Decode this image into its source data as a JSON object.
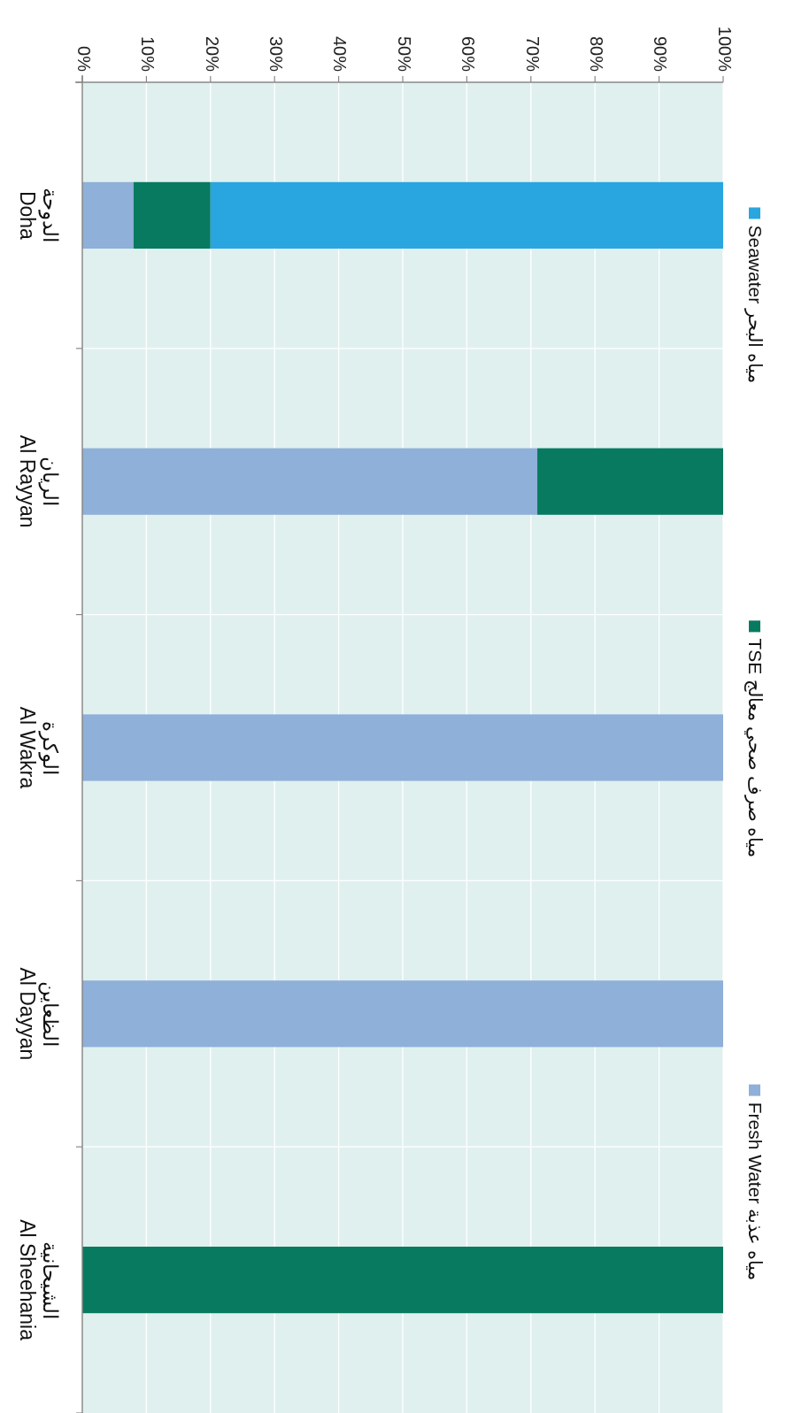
{
  "chart_data": {
    "type": "bar",
    "orientation": "horizontal",
    "stacked": true,
    "categories": [
      "الدوحة\nDoha",
      "الريان\nAl Rayyan",
      "الوكرة\nAl Wakra",
      "الظعاين\nAl Dayyan",
      "الشيحانية\nAl Sheehania"
    ],
    "series": [
      {
        "name": "Fresh Water  مياه عذبة",
        "color": "#8eb0d9",
        "values": [
          8,
          71,
          100,
          100,
          0
        ]
      },
      {
        "name": "TSE  مياه صرف صحي معالج",
        "color": "#077a60",
        "values": [
          12,
          29,
          0,
          0,
          100
        ]
      },
      {
        "name": "Seawater  مياه البحر",
        "color": "#29a6df",
        "values": [
          80,
          0,
          0,
          0,
          0
        ]
      }
    ],
    "xlim": [
      0,
      100
    ],
    "xticks": [
      {
        "value": 0,
        "label": "0%"
      },
      {
        "value": 10,
        "label": "10%"
      },
      {
        "value": 20,
        "label": "20%"
      },
      {
        "value": 30,
        "label": "30%"
      },
      {
        "value": 40,
        "label": "40%"
      },
      {
        "value": 50,
        "label": "50%"
      },
      {
        "value": 60,
        "label": "60%"
      },
      {
        "value": 70,
        "label": "70%"
      },
      {
        "value": 80,
        "label": "80%"
      },
      {
        "value": 90,
        "label": "90%"
      },
      {
        "value": 100,
        "label": "100%"
      }
    ],
    "grid": true,
    "legend": "right"
  }
}
